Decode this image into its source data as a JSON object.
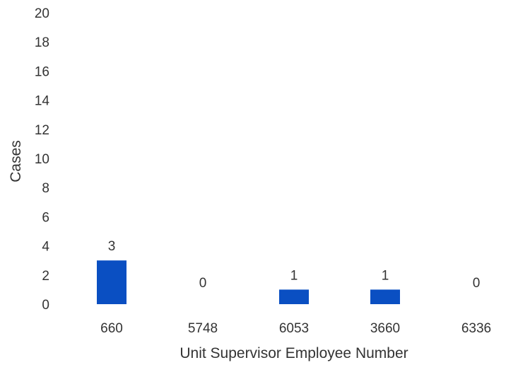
{
  "chart_data": {
    "type": "bar",
    "categories": [
      "660",
      "5748",
      "6053",
      "3660",
      "6336"
    ],
    "values": [
      3,
      0,
      1,
      1,
      0
    ],
    "data_labels": [
      "3",
      "0",
      "1",
      "1",
      "0"
    ],
    "title": "",
    "xlabel": "Unit Supervisor Employee Number",
    "ylabel": "Cases",
    "ylim": [
      0,
      20
    ],
    "yticks": [
      "0",
      "2",
      "4",
      "6",
      "8",
      "10",
      "12",
      "14",
      "16",
      "18",
      "20"
    ],
    "grid": false,
    "legend": "none",
    "bar_color": "#0a4fc2"
  }
}
